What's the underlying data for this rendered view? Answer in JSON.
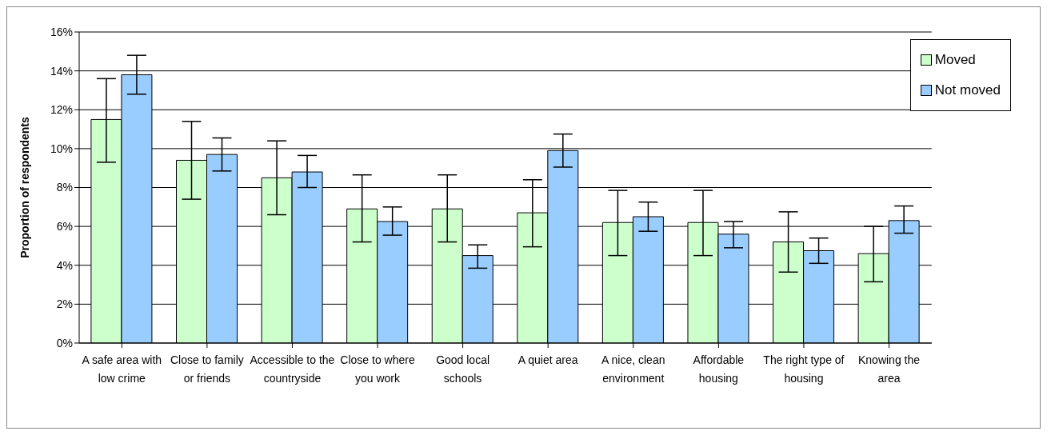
{
  "chart_data": {
    "type": "bar",
    "ylabel": "Proportion of respondents",
    "categories": [
      "A safe area with low crime",
      "Close to family or friends",
      "Accessible to the countryside",
      "Close to where you work",
      "Good local schools",
      "A quiet area",
      "A nice, clean environment",
      "Affordable housing",
      "The right type of housing",
      "Knowing the area"
    ],
    "series": [
      {
        "name": "Moved",
        "color": "#ccffcc",
        "values": [
          11.5,
          9.4,
          8.5,
          6.9,
          6.9,
          6.7,
          6.2,
          6.2,
          5.2,
          4.6
        ],
        "errors": [
          [
            9.3,
            13.6
          ],
          [
            7.4,
            11.4
          ],
          [
            6.6,
            10.4
          ],
          [
            5.2,
            8.65
          ],
          [
            5.2,
            8.65
          ],
          [
            4.95,
            8.4
          ],
          [
            4.5,
            7.85
          ],
          [
            4.5,
            7.85
          ],
          [
            3.65,
            6.75
          ],
          [
            3.15,
            6.0
          ]
        ]
      },
      {
        "name": "Not moved",
        "color": "#99ccff",
        "values": [
          13.8,
          9.7,
          8.8,
          6.25,
          4.5,
          9.9,
          6.5,
          5.6,
          4.75,
          6.3
        ],
        "errors": [
          [
            12.8,
            14.8
          ],
          [
            8.85,
            10.55
          ],
          [
            8.0,
            9.65
          ],
          [
            5.55,
            7.0
          ],
          [
            3.85,
            5.05
          ],
          [
            9.05,
            10.75
          ],
          [
            5.75,
            7.25
          ],
          [
            4.9,
            6.25
          ],
          [
            4.1,
            5.4
          ],
          [
            5.65,
            7.05
          ]
        ]
      }
    ],
    "ylim": [
      0,
      16
    ],
    "yticks": [
      {
        "value": 0,
        "label": "0%"
      },
      {
        "value": 2,
        "label": "2%"
      },
      {
        "value": 4,
        "label": "4%"
      },
      {
        "value": 6,
        "label": "6%"
      },
      {
        "value": 8,
        "label": "8%"
      },
      {
        "value": 10,
        "label": "10%"
      },
      {
        "value": 12,
        "label": "12%"
      },
      {
        "value": 14,
        "label": "14%"
      },
      {
        "value": 16,
        "label": "16%"
      }
    ],
    "grid": "y",
    "legend": "top right"
  }
}
